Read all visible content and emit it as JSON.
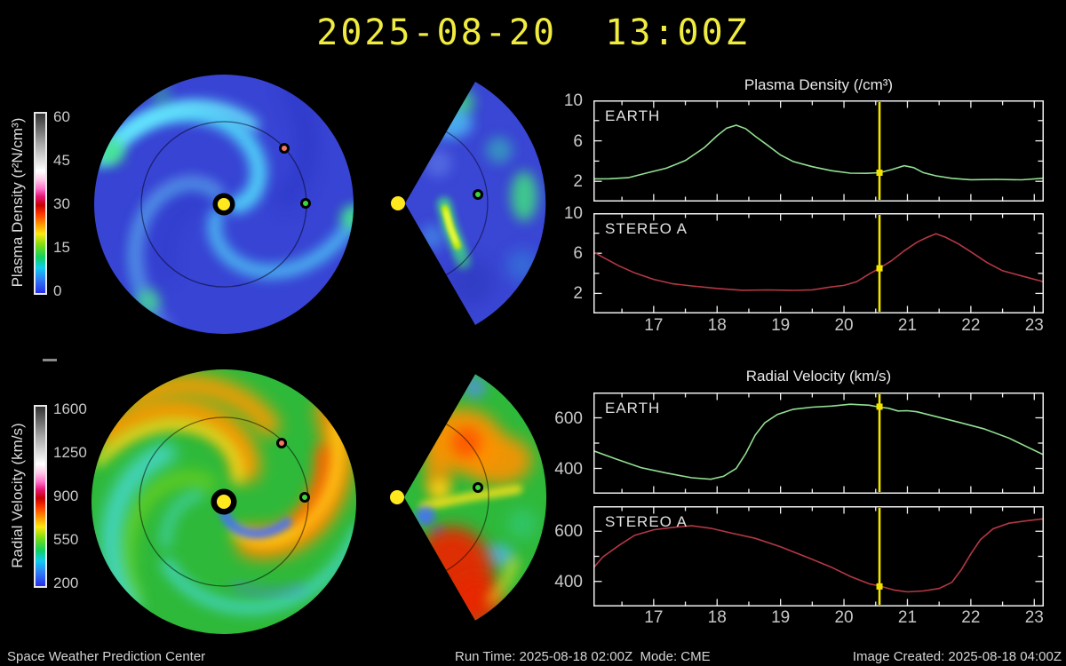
{
  "title": "2025-08-20  13:00Z",
  "colorbars": {
    "density": {
      "label": "Plasma Density (r²N/cm³)",
      "ticks": [
        "60",
        "45",
        "30",
        "15",
        "0"
      ]
    },
    "velocity": {
      "label": "Radial Velocity (km/s)",
      "ticks": [
        "1600",
        "1250",
        "900",
        "550",
        "200"
      ]
    }
  },
  "map_markers": {
    "sun": "#ffe81e",
    "earth": "#3ed43e",
    "stereo_a": "#f4775f"
  },
  "chart_data": {
    "type": "line",
    "x_axis": {
      "label_days": [
        17,
        18,
        19,
        20,
        21,
        22,
        23
      ],
      "range": [
        16.05,
        23.15
      ],
      "current_time": 20.56,
      "current_time_color": "#f2e400"
    },
    "groups": [
      {
        "title": "Plasma Density (/cm³)",
        "ylim": [
          0,
          10
        ],
        "y_ticks_labeled": [
          2,
          6,
          10
        ],
        "y_ticks_minor": [
          4,
          8
        ],
        "panels": [
          {
            "label": "EARTH",
            "color": "#93e093",
            "x": [
              16.05,
              16.3,
              16.6,
              16.9,
              17.2,
              17.5,
              17.8,
              18.0,
              18.15,
              18.3,
              18.45,
              18.6,
              18.8,
              19.0,
              19.2,
              19.5,
              19.8,
              20.1,
              20.35,
              20.56,
              20.75,
              20.95,
              21.1,
              21.25,
              21.45,
              21.7,
              22.0,
              22.4,
              22.8,
              23.15
            ],
            "y": [
              2.2,
              2.25,
              2.4,
              2.8,
              3.3,
              4.1,
              5.3,
              6.5,
              7.3,
              7.5,
              7.2,
              6.5,
              5.5,
              4.6,
              4.0,
              3.4,
              3.05,
              2.85,
              2.75,
              2.85,
              3.2,
              3.5,
              3.35,
              2.9,
              2.5,
              2.3,
              2.2,
              2.15,
              2.15,
              2.35
            ]
          },
          {
            "label": "STEREO A",
            "color": "#b43845",
            "x": [
              16.05,
              16.2,
              16.45,
              16.7,
              17.0,
              17.3,
              17.6,
              18.0,
              18.4,
              18.8,
              19.2,
              19.5,
              19.8,
              20.0,
              20.2,
              20.4,
              20.56,
              20.75,
              20.95,
              21.15,
              21.3,
              21.45,
              21.6,
              21.8,
              22.0,
              22.25,
              22.5,
              22.8,
              23.15
            ],
            "y": [
              6.1,
              5.6,
              4.8,
              4.0,
              3.4,
              3.0,
              2.7,
              2.5,
              2.35,
              2.3,
              2.3,
              2.4,
              2.6,
              2.8,
              3.2,
              3.9,
              4.5,
              5.3,
              6.2,
              7.1,
              7.6,
              7.9,
              7.6,
              7.0,
              6.1,
              5.1,
              4.3,
              3.7,
              3.15
            ]
          }
        ]
      },
      {
        "title": "Radial Velocity (km/s)",
        "ylim": [
          300,
          700
        ],
        "y_ticks_labeled": [
          400,
          600
        ],
        "y_ticks_minor": [
          500,
          700
        ],
        "panels": [
          {
            "label": "EARTH",
            "color": "#93e093",
            "x": [
              16.05,
              16.4,
              16.8,
              17.2,
              17.6,
              17.9,
              18.1,
              18.3,
              18.45,
              18.6,
              18.75,
              18.95,
              19.2,
              19.5,
              19.8,
              20.1,
              20.4,
              20.56,
              20.7,
              20.85,
              21.0,
              21.15,
              21.4,
              21.8,
              22.2,
              22.6,
              23.15
            ],
            "y": [
              468,
              438,
              405,
              380,
              363,
              359,
              367,
              400,
              460,
              530,
              580,
              615,
              632,
              642,
              648,
              652,
              650,
              644,
              636,
              627,
              630,
              622,
              608,
              585,
              555,
              520,
              455
            ]
          },
          {
            "label": "STEREO A",
            "color": "#b43845",
            "x": [
              16.05,
              16.2,
              16.45,
              16.7,
              17.0,
              17.3,
              17.6,
              17.9,
              18.2,
              18.6,
              19.0,
              19.4,
              19.8,
              20.1,
              20.4,
              20.56,
              20.8,
              21.0,
              21.25,
              21.5,
              21.7,
              21.85,
              22.0,
              22.15,
              22.35,
              22.6,
              22.9,
              23.15
            ],
            "y": [
              452,
              498,
              545,
              582,
              606,
              617,
              620,
              612,
              596,
              570,
              538,
              500,
              455,
              420,
              392,
              380,
              365,
              360,
              360,
              372,
              398,
              445,
              510,
              568,
              608,
              632,
              644,
              648
            ]
          }
        ]
      }
    ]
  },
  "footer": {
    "left": "Space Weather Prediction Center",
    "center": "Run Time: 2025-08-18 02:00Z  Mode: CME",
    "right": "Image Created: 2025-08-18 04:00Z"
  }
}
